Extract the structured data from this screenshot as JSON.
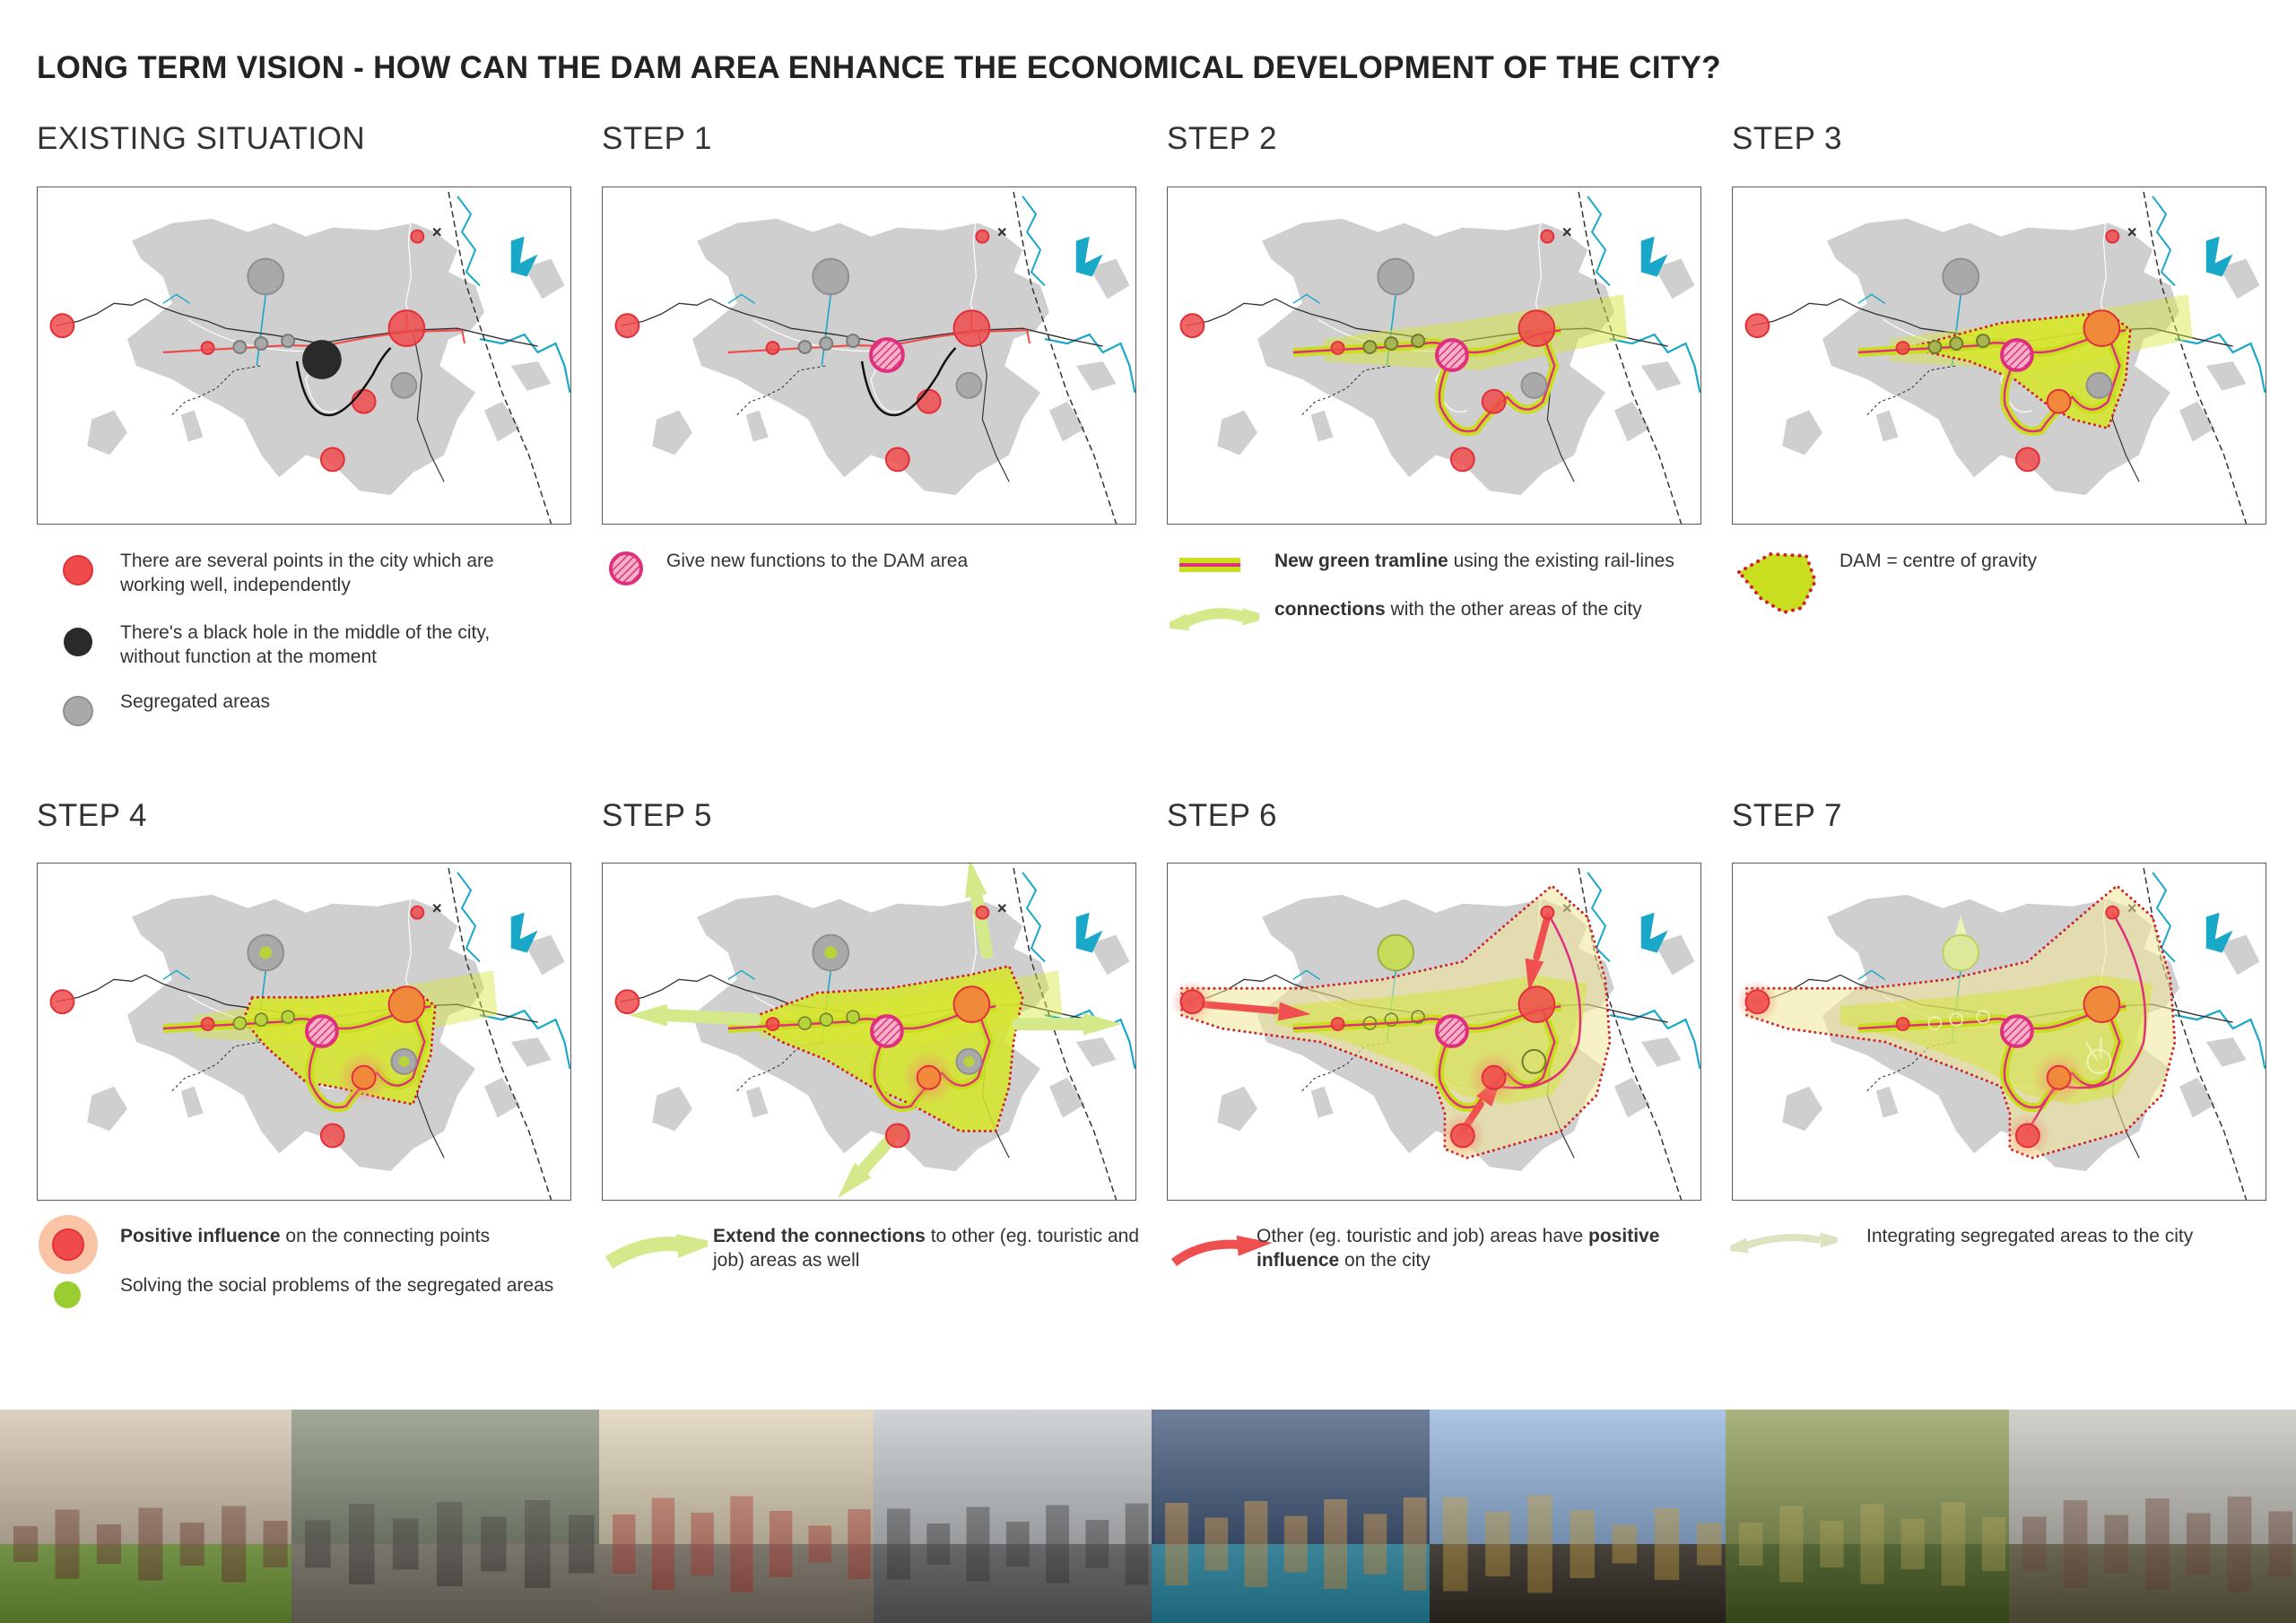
{
  "title": "LONG TERM VISION - HOW CAN THE DAM AREA ENHANCE THE ECONOMICAL DEVELOPMENT OF THE CITY?",
  "colors": {
    "city": "#d0cfd0",
    "water": "#19a8c7",
    "node_red": "#ef4b4b",
    "node_red_stroke": "#e2303a",
    "black_hole": "#2a2a2a",
    "segregated": "#a9a9a9",
    "tram_green": "#c9de1e",
    "tram_magenta": "#e0307d",
    "influence": "#f5a67a",
    "dotted_red": "#d0212e",
    "arrow_lime": "#d4e98a",
    "arrow_red": "#ef4f4f"
  },
  "steps": [
    {
      "key": "existing",
      "title": "EXISTING SITUATION",
      "legend": [
        {
          "symbol": "red-dot-icon",
          "text": "There are several points in the city which are working well, independently"
        },
        {
          "symbol": "black-dot-icon",
          "text": "There's a black hole in the middle of the city, without function at the moment"
        },
        {
          "symbol": "grey-dot-icon",
          "text": "Segregated areas"
        }
      ]
    },
    {
      "key": "step1",
      "title": "STEP 1",
      "legend": [
        {
          "symbol": "hatched-dot-icon",
          "text": "Give new functions to the DAM area"
        }
      ]
    },
    {
      "key": "step2",
      "title": "STEP 2",
      "legend": [
        {
          "symbol": "tramline-icon",
          "bold": "New green tramline",
          "text": " using the existing rail-lines"
        },
        {
          "symbol": "double-arrow-icon",
          "bold": "connections",
          "text": " with the other areas of the city"
        }
      ]
    },
    {
      "key": "step3",
      "title": "STEP 3",
      "legend": [
        {
          "symbol": "dotted-triangle-icon",
          "text": "DAM = centre of gravity"
        }
      ]
    },
    {
      "key": "step4",
      "title": "STEP 4",
      "legend": [
        {
          "symbol": "influence-dot-icon",
          "bold": "Positive influence",
          "text": " on the connecting points"
        },
        {
          "symbol": "green-dot-icon",
          "text": "Solving the social problems of the segregated areas"
        }
      ]
    },
    {
      "key": "step5",
      "title": "STEP 5",
      "legend": [
        {
          "symbol": "lime-arrow-icon",
          "bold": "Extend the connections",
          "text": " to other (eg. touristic and job) areas as well"
        }
      ]
    },
    {
      "key": "step6",
      "title": "STEP 6",
      "legend": [
        {
          "symbol": "red-arrow-icon",
          "text": "Other (eg. touristic and job) areas have ",
          "bold_after": "positive influence",
          "text_after": " on the city"
        }
      ]
    },
    {
      "key": "step7",
      "title": "STEP 7",
      "legend": [
        {
          "symbol": "pale-double-arrow-icon",
          "text": "Integrating segregated areas to the city"
        }
      ]
    }
  ],
  "photos": [
    {
      "name": "campus-lawn-photo",
      "sky": "#c9b8a0",
      "ground": "#7fae3c",
      "accent": "#7a3e2a"
    },
    {
      "name": "elderly-women-photo",
      "sky": "#6f7a62",
      "ground": "#8a8476",
      "accent": "#3e3b36"
    },
    {
      "name": "street-parade-photo",
      "sky": "#d7c9a8",
      "ground": "#8f8474",
      "accent": "#c23b2e"
    },
    {
      "name": "factory-workers-photo",
      "sky": "#b8bcc0",
      "ground": "#6b6e70",
      "accent": "#3c3c3c"
    },
    {
      "name": "thermal-pool-night-photo",
      "sky": "#203a63",
      "ground": "#2a9bbd",
      "accent": "#e8a040"
    },
    {
      "name": "graduation-photo",
      "sky": "#7fa6d6",
      "ground": "#3a3328",
      "accent": "#d4a93a"
    },
    {
      "name": "forest-hills-photo",
      "sky": "#7a8a3a",
      "ground": "#4f6a22",
      "accent": "#b9b04a"
    },
    {
      "name": "industrial-ruin-photo",
      "sky": "#b9b8b0",
      "ground": "#6f6a4a",
      "accent": "#7a4a3a"
    }
  ]
}
